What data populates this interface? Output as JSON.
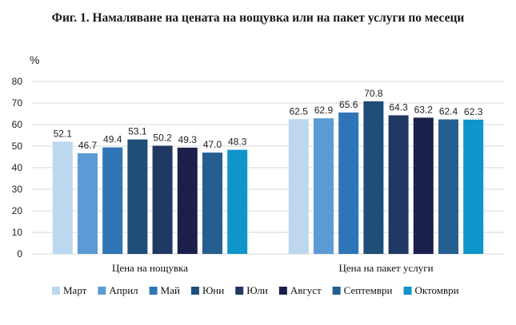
{
  "figure": {
    "title": "Фиг. 1. Намаляване на цената на нощувка или на пакет услуги по месеци"
  },
  "chart_data": {
    "type": "bar",
    "ylabel": "%",
    "ylim": [
      0,
      80
    ],
    "yticks": [
      0,
      10,
      20,
      30,
      40,
      50,
      60,
      70,
      80
    ],
    "grid": true,
    "legend_position": "bottom",
    "categories": [
      "Цена на нощувка",
      "Цена на пакет  услуги"
    ],
    "series": [
      {
        "name": "Март",
        "color": "#bdd7ee",
        "values": [
          52.1,
          62.5
        ]
      },
      {
        "name": "Април",
        "color": "#5b9bd5",
        "values": [
          46.7,
          62.9
        ]
      },
      {
        "name": "Май",
        "color": "#2e75b6",
        "values": [
          49.4,
          65.6
        ]
      },
      {
        "name": "Юни",
        "color": "#1f4e79",
        "values": [
          53.1,
          70.8
        ]
      },
      {
        "name": "Юли",
        "color": "#203864",
        "values": [
          50.2,
          64.3
        ]
      },
      {
        "name": "Август",
        "color": "#1b1f4b",
        "values": [
          49.3,
          63.2
        ]
      },
      {
        "name": "Септември",
        "color": "#255e91",
        "values": [
          47.0,
          62.4
        ]
      },
      {
        "name": "Октомври",
        "color": "#0e95c9",
        "values": [
          48.3,
          62.3
        ]
      }
    ]
  }
}
